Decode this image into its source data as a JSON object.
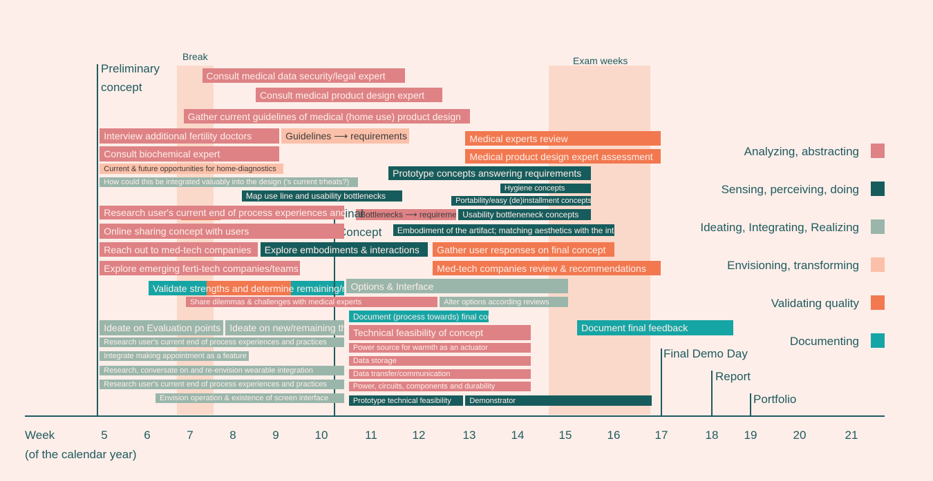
{
  "chart_data": {
    "type": "gantt",
    "x_axis": {
      "label_line1": "Week",
      "label_line2": "(of the calendar year)",
      "ticks": [
        "5",
        "6",
        "7",
        "8",
        "9",
        "10",
        "11",
        "12",
        "13",
        "14",
        "15",
        "16",
        "17",
        "18",
        "19",
        "20",
        "21"
      ]
    },
    "shaded_periods": [
      {
        "label": "Break",
        "start": 6.65,
        "end": 7.45
      },
      {
        "label": "Exam weeks",
        "start": 14.65,
        "end": 16.8
      }
    ],
    "categories": [
      {
        "key": "analyze",
        "label": "Analyzing, abstracting",
        "color": "#de8285"
      },
      {
        "key": "sense",
        "label": "Sensing, perceiving, doing",
        "color": "#175c5c"
      },
      {
        "key": "ideate",
        "label": "Ideating, Integrating, Realizing",
        "color": "#9ab6ab"
      },
      {
        "key": "envision",
        "label": "Envisioning, transforming",
        "color": "#fbc0a9"
      },
      {
        "key": "validate",
        "label": "Validating quality",
        "color": "#f2784f"
      },
      {
        "key": "document",
        "label": "Documenting",
        "color": "#16a5a5"
      }
    ],
    "milestones": [
      {
        "label_lines": [
          "Preliminary",
          "concept"
        ],
        "week": 4.85
      },
      {
        "label_lines": [
          "Final",
          "Concept"
        ],
        "week": 10.15
      },
      {
        "label_lines": [
          "Final Demo Day"
        ],
        "week": 17.0
      },
      {
        "label_lines": [
          "Report"
        ],
        "week": 18.1
      },
      {
        "label_lines": [
          "Portfolio"
        ],
        "week": 19.0
      }
    ],
    "tasks": [
      {
        "label": "Consult medical data security/legal expert",
        "cat": "analyze",
        "start": 7.1,
        "end": 11.45,
        "row": 1
      },
      {
        "label": "Consult medical product design expert",
        "cat": "analyze",
        "start": 8.25,
        "end": 12.25,
        "row": 2
      },
      {
        "label": "Gather current guidelines of medical (home use) product design",
        "cat": "analyze",
        "start": 6.7,
        "end": 12.85,
        "row": 3
      },
      {
        "label": "Interview additional fertility doctors",
        "cat": "analyze",
        "start": 4.9,
        "end": 8.75,
        "row": 4
      },
      {
        "label": "Guidelines ⟶ requirements",
        "cat": "envision",
        "start": 8.8,
        "end": 11.55,
        "row": 4
      },
      {
        "label": "Medical experts review",
        "cat": "validate",
        "start": 12.75,
        "end": 16.95,
        "row": 5
      },
      {
        "label": "Consult biochemical expert",
        "cat": "analyze",
        "start": 4.9,
        "end": 8.75,
        "row": 6
      },
      {
        "label": "Medical product design expert assessment",
        "cat": "validate",
        "start": 12.75,
        "end": 16.95,
        "row": 7
      },
      {
        "label": "Current & future opportunities for home-diagnostics",
        "cat": "envision",
        "start": 4.9,
        "end": 8.85,
        "row": 8
      },
      {
        "label": "Prototype concepts answering requirements",
        "cat": "sense",
        "start": 11.1,
        "end": 15.45,
        "row": 9
      },
      {
        "label": "How could this be integrated valuably into the design ('s current trheats?)",
        "cat": "ideate",
        "start": 4.9,
        "end": 10.45,
        "row": 10
      },
      {
        "label": "Hygiene concepts",
        "cat": "sense",
        "start": 13.5,
        "end": 15.45,
        "row": 11
      },
      {
        "label": "Map use line and usability bottlenecks",
        "cat": "sense",
        "start": 7.95,
        "end": 11.4,
        "row": 12
      },
      {
        "label": "Portability/easy (de)installment concepts",
        "cat": "sense",
        "start": 12.45,
        "end": 15.45,
        "row": 13
      },
      {
        "label": "Research user's current end of process experiences and practices",
        "cat": "analyze",
        "start": 4.9,
        "end": 10.15,
        "row": 14
      },
      {
        "label": "Bottlenecks ⟶ requirements",
        "cat": "envision",
        "start": 10.4,
        "end": 12.55,
        "row": 15
      },
      {
        "label": "Usability bottleneneck concepts",
        "cat": "sense",
        "start": 12.6,
        "end": 15.45,
        "row": 15
      },
      {
        "label": "Online sharing concept with users",
        "cat": "analyze",
        "start": 4.9,
        "end": 10.15,
        "row": 16
      },
      {
        "label": "Embodiment of the artifact; matching aesthetics with the interactions",
        "cat": "sense",
        "start": 11.2,
        "end": 15.95,
        "row": 17
      },
      {
        "label": "Reach out to med-tech companies",
        "cat": "analyze",
        "start": 4.9,
        "end": 8.3,
        "row": 18
      },
      {
        "label": "Explore embodiments & interactions",
        "cat": "sense",
        "start": 8.35,
        "end": 11.95,
        "row": 18
      },
      {
        "label": "Gather user responses on final concept",
        "cat": "validate",
        "start": 12.05,
        "end": 15.95,
        "row": 18
      },
      {
        "label": "Explore emerging ferti-tech companies/teams",
        "cat": "analyze",
        "start": 4.9,
        "end": 9.2,
        "row": 19
      },
      {
        "label": "Med-tech companies review & recommendations",
        "cat": "validate",
        "start": 12.05,
        "end": 16.95,
        "row": 19
      },
      {
        "label": "Validate strengths and determine remaining/new threats",
        "cat": "document",
        "start": 5.95,
        "end": 10.15,
        "row": 20
      },
      {
        "label": "Options & Interface",
        "cat": "ideate",
        "start": 10.2,
        "end": 14.95,
        "row": 21
      },
      {
        "label": "Share dilemmas & challenges with medical experts",
        "cat": "analyze",
        "start": 6.75,
        "end": 12.15,
        "row": 22
      },
      {
        "label": "Alter options according reviews",
        "cat": "ideate",
        "start": 12.2,
        "end": 14.95,
        "row": 22
      },
      {
        "label": "Document (process towards) final concept",
        "cat": "document",
        "start": 10.25,
        "end": 13.25,
        "row": 23
      },
      {
        "label": "Document final feedback",
        "cat": "document",
        "start": 15.15,
        "end": 18.5,
        "row": 24
      },
      {
        "label": "Ideate on Evaluation points",
        "cat": "ideate",
        "start": 4.9,
        "end": 7.55,
        "row": 24
      },
      {
        "label": "Ideate on new/remaining threats",
        "cat": "ideate",
        "start": 7.6,
        "end": 10.15,
        "row": 24
      },
      {
        "label": "Technical feasibility of concept",
        "cat": "analyze",
        "start": 10.25,
        "end": 14.15,
        "row": 25
      },
      {
        "label": "Research user's current end of process experiences and practices",
        "cat": "ideate",
        "start": 4.9,
        "end": 10.15,
        "row": 26
      },
      {
        "label": "Power source for warmth as an actuator",
        "cat": "analyze",
        "start": 10.25,
        "end": 14.15,
        "row": 27
      },
      {
        "label": "Integrate making appointment as a feature",
        "cat": "ideate",
        "start": 4.9,
        "end": 8.1,
        "row": 28
      },
      {
        "label": "Data storage",
        "cat": "analyze",
        "start": 10.25,
        "end": 14.15,
        "row": 29
      },
      {
        "label": "Research, conversate on and re-envision wearable integration",
        "cat": "ideate",
        "start": 4.9,
        "end": 10.15,
        "row": 30
      },
      {
        "label": "Data transfer/communication",
        "cat": "analyze",
        "start": 10.25,
        "end": 14.15,
        "row": 31
      },
      {
        "label": "Research user's current end of process experiences and practices",
        "cat": "ideate",
        "start": 4.9,
        "end": 10.15,
        "row": 32
      },
      {
        "label": "Power, circuits, components and durability",
        "cat": "analyze",
        "start": 10.25,
        "end": 14.15,
        "row": 33
      },
      {
        "label": "Envision operation & existence of screen interface",
        "cat": "ideate",
        "start": 6.1,
        "end": 10.15,
        "row": 34
      },
      {
        "label": "Prototype technical feasibility",
        "cat": "sense",
        "start": 10.25,
        "end": 12.7,
        "row": 35
      },
      {
        "label": "Demonstrator",
        "cat": "sense",
        "start": 12.75,
        "end": 16.75,
        "row": 35
      }
    ]
  }
}
